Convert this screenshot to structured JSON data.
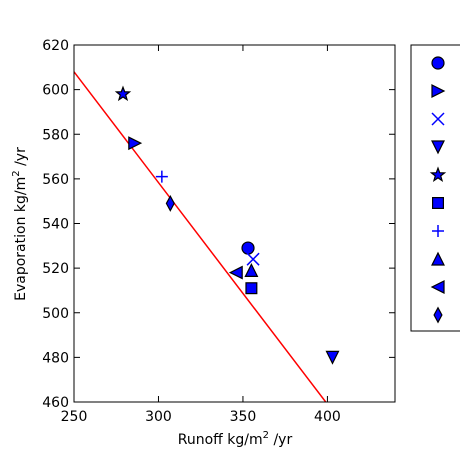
{
  "chart_data": {
    "type": "scatter",
    "xlabel_main": "Runoff kg/m",
    "xlabel_sup": "2",
    "xlabel_tail": " /yr",
    "ylabel_main": "Evaporation kg/m",
    "ylabel_sup": "2",
    "ylabel_tail": " /yr",
    "xlim": [
      250,
      440
    ],
    "ylim": [
      460,
      620
    ],
    "xticks": [
      250,
      300,
      350,
      400
    ],
    "yticks": [
      460,
      480,
      500,
      520,
      540,
      560,
      580,
      600,
      620
    ],
    "grid": false,
    "legend_placement": "outside-right",
    "marker_color": "#0000ff",
    "line_color": "#ff0000",
    "points": [
      {
        "marker": "circle",
        "x": 353,
        "y": 529
      },
      {
        "marker": "triangle-right",
        "x": 286,
        "y": 576
      },
      {
        "marker": "x",
        "x": 356,
        "y": 524
      },
      {
        "marker": "triangle-down",
        "x": 403,
        "y": 480
      },
      {
        "marker": "star",
        "x": 279,
        "y": 598
      },
      {
        "marker": "square",
        "x": 355,
        "y": 511
      },
      {
        "marker": "plus",
        "x": 302,
        "y": 561
      },
      {
        "marker": "triangle-up",
        "x": 355,
        "y": 519
      },
      {
        "marker": "triangle-left",
        "x": 346,
        "y": 518
      },
      {
        "marker": "diamond",
        "x": 307,
        "y": 549
      }
    ],
    "fit_line": {
      "x": [
        250,
        399
      ],
      "y": [
        608,
        460
      ]
    },
    "legend_markers": [
      "circle",
      "triangle-right",
      "x",
      "triangle-down",
      "star",
      "square",
      "plus",
      "triangle-up",
      "triangle-left",
      "diamond"
    ]
  }
}
